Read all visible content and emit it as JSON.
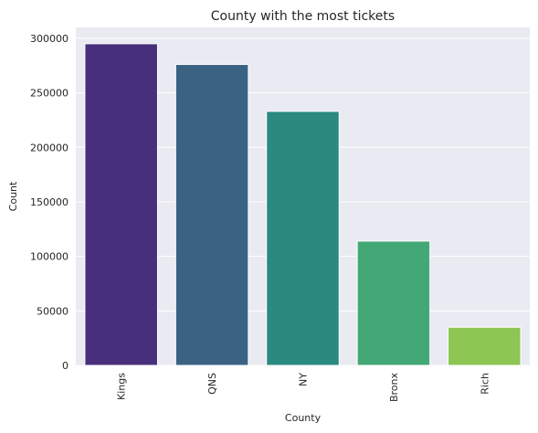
{
  "chart_data": {
    "type": "bar",
    "title": "County with the most tickets",
    "xlabel": "County",
    "ylabel": "Count",
    "categories": [
      "Kings",
      "QNS",
      "NY",
      "Bronx",
      "Rich"
    ],
    "values": [
      295000,
      276000,
      233000,
      114000,
      35000
    ],
    "colors": [
      "#482f7b",
      "#3a6283",
      "#2a8a7f",
      "#44a876",
      "#8dc653"
    ],
    "ylim": [
      0,
      310000
    ],
    "yticks": [
      0,
      50000,
      100000,
      150000,
      200000,
      250000,
      300000
    ],
    "ytick_labels": [
      "0",
      "50000",
      "100000",
      "150000",
      "200000",
      "250000",
      "300000"
    ],
    "grid": true,
    "background": "#eaeaf2",
    "grid_color": "#ffffff"
  }
}
